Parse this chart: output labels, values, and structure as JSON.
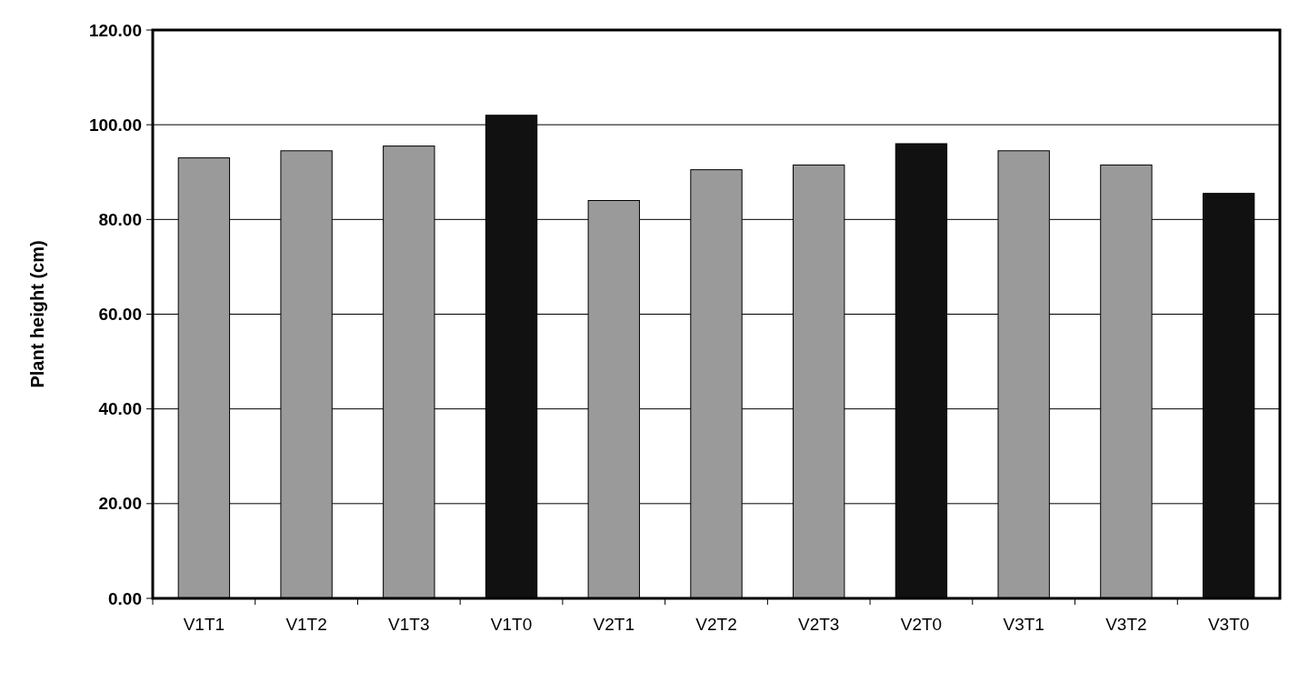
{
  "chart_data": {
    "type": "bar",
    "ylabel": "Plant height (cm)",
    "categories": [
      "V1T1",
      "V1T2",
      "V1T3",
      "V1T0",
      "V2T1",
      "V2T2",
      "V2T3",
      "V2T0",
      "V3T1",
      "V3T2",
      "V3T0"
    ],
    "values": [
      93,
      94.5,
      95.5,
      102,
      84,
      90.5,
      91.5,
      96,
      94.5,
      91.5,
      85.5
    ],
    "colors": [
      "#9a9a9a",
      "#9a9a9a",
      "#9a9a9a",
      "#111111",
      "#9a9a9a",
      "#9a9a9a",
      "#9a9a9a",
      "#111111",
      "#9a9a9a",
      "#9a9a9a",
      "#111111"
    ],
    "ylim": [
      0,
      120
    ],
    "yticks": [
      {
        "value": 0,
        "label": "0.00"
      },
      {
        "value": 20,
        "label": "20.00"
      },
      {
        "value": 40,
        "label": "40.00"
      },
      {
        "value": 60,
        "label": "60.00"
      },
      {
        "value": 80,
        "label": "80.00"
      },
      {
        "value": 100,
        "label": "100.00"
      },
      {
        "value": 120,
        "label": "120.00"
      }
    ],
    "grid": "y"
  }
}
